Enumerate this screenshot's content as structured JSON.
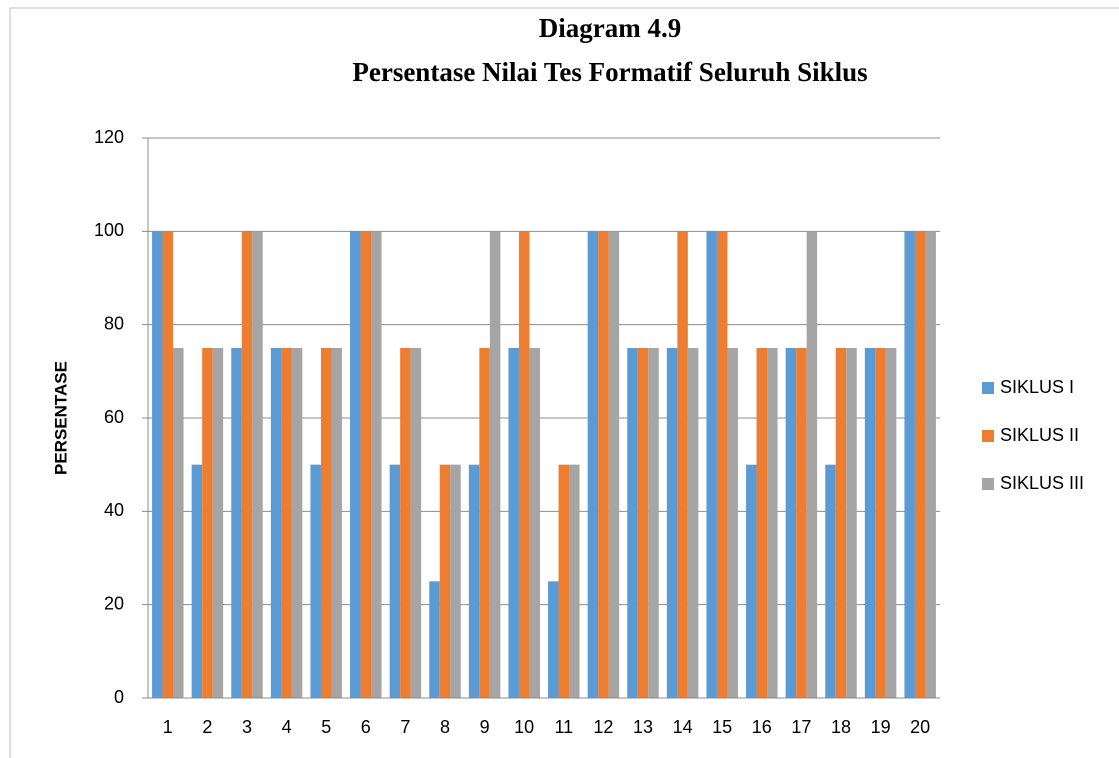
{
  "chart_data": {
    "type": "bar",
    "title": "Diagram 4.9",
    "subtitle": "Persentase Nilai Tes Formatif Seluruh Siklus",
    "y_label": "PERSENTASE",
    "categories": [
      "1",
      "2",
      "3",
      "4",
      "5",
      "6",
      "7",
      "8",
      "9",
      "10",
      "11",
      "12",
      "13",
      "14",
      "15",
      "16",
      "17",
      "18",
      "19",
      "20"
    ],
    "series": [
      {
        "name": "SIKLUS I",
        "color": "#5b9bd5",
        "values": [
          100,
          50,
          75,
          75,
          50,
          100,
          50,
          25,
          50,
          75,
          25,
          100,
          75,
          75,
          100,
          50,
          75,
          50,
          75,
          100
        ]
      },
      {
        "name": "SIKLUS II",
        "color": "#ed7d31",
        "values": [
          100,
          75,
          100,
          75,
          75,
          100,
          75,
          50,
          75,
          100,
          50,
          100,
          75,
          100,
          100,
          75,
          75,
          75,
          75,
          100
        ]
      },
      {
        "name": "SIKLUS III",
        "color": "#a5a5a5",
        "values": [
          75,
          75,
          100,
          75,
          75,
          100,
          75,
          50,
          100,
          75,
          50,
          100,
          75,
          75,
          75,
          75,
          100,
          75,
          75,
          100
        ]
      }
    ],
    "ylim": [
      0,
      120
    ],
    "yticks": [
      0,
      20,
      40,
      60,
      80,
      100,
      120
    ],
    "grid": true,
    "legend": "right"
  }
}
